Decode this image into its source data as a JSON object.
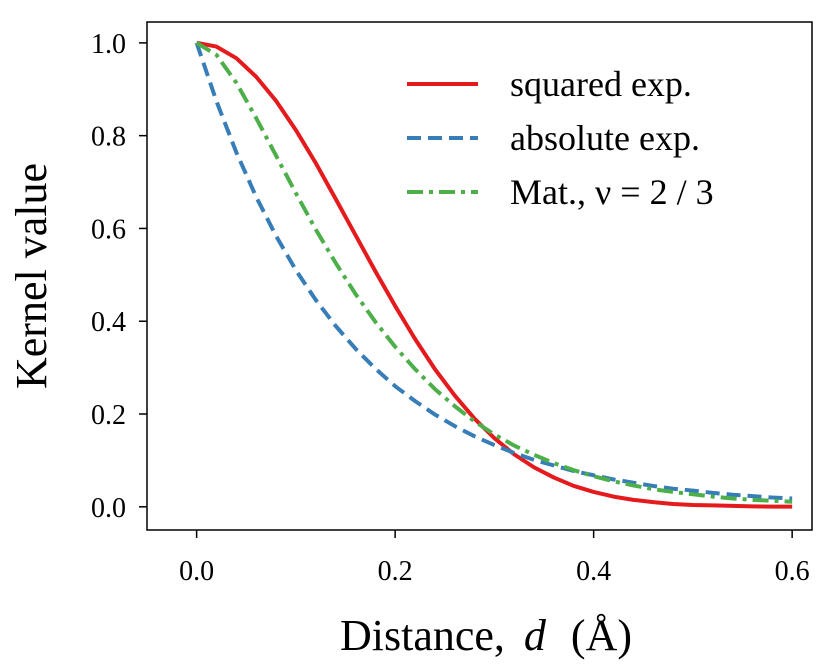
{
  "chart_data": {
    "type": "line",
    "title": "",
    "xlabel": "Distance,",
    "xlabel_var": "d",
    "xlabel_unit": "(Å)",
    "ylabel": "Kernel value",
    "xlim": [
      -0.05,
      0.62
    ],
    "ylim": [
      -0.05,
      1.045
    ],
    "xticks": [
      0.0,
      0.2,
      0.4,
      0.6
    ],
    "xtick_labels": [
      "0.0",
      "0.2",
      "0.4",
      "0.6"
    ],
    "yticks": [
      0.0,
      0.2,
      0.4,
      0.6,
      0.8,
      1.0
    ],
    "ytick_labels": [
      "0.0",
      "0.2",
      "0.4",
      "0.6",
      "0.8",
      "1.0"
    ],
    "grid": false,
    "legend_position": "top-right",
    "series": [
      {
        "name": "squared exp.",
        "color": "#e41a1c",
        "dash": "solid",
        "x": [
          0.0,
          0.02,
          0.04,
          0.06,
          0.08,
          0.1,
          0.12,
          0.14,
          0.16,
          0.18,
          0.2,
          0.22,
          0.24,
          0.26,
          0.28,
          0.3,
          0.32,
          0.34,
          0.36,
          0.38,
          0.4,
          0.42,
          0.44,
          0.46,
          0.48,
          0.5,
          0.52,
          0.54,
          0.56,
          0.58,
          0.6
        ],
        "y": [
          1.0,
          0.992,
          0.967,
          0.927,
          0.875,
          0.812,
          0.741,
          0.664,
          0.586,
          0.508,
          0.433,
          0.362,
          0.297,
          0.24,
          0.19,
          0.148,
          0.113,
          0.085,
          0.063,
          0.045,
          0.032,
          0.022,
          0.015,
          0.01,
          0.006,
          0.004,
          0.003,
          0.002,
          0.001,
          0.0005,
          0.0003
        ]
      },
      {
        "name": "absolute exp.",
        "color": "#377eb8",
        "dash": "dashed",
        "x": [
          0.0,
          0.02,
          0.04,
          0.06,
          0.08,
          0.1,
          0.12,
          0.14,
          0.16,
          0.18,
          0.2,
          0.22,
          0.24,
          0.26,
          0.28,
          0.3,
          0.32,
          0.34,
          0.36,
          0.38,
          0.4,
          0.42,
          0.44,
          0.46,
          0.48,
          0.5,
          0.52,
          0.54,
          0.56,
          0.58,
          0.6
        ],
        "y": [
          1.0,
          0.874,
          0.764,
          0.668,
          0.584,
          0.51,
          0.446,
          0.39,
          0.341,
          0.298,
          0.26,
          0.228,
          0.199,
          0.174,
          0.152,
          0.133,
          0.116,
          0.101,
          0.089,
          0.077,
          0.068,
          0.059,
          0.052,
          0.045,
          0.039,
          0.035,
          0.03,
          0.026,
          0.023,
          0.02,
          0.018
        ]
      },
      {
        "name": "Mat., ν = 2 / 3",
        "color": "#4daf4a",
        "dash": "dashdot",
        "x": [
          0.0,
          0.02,
          0.04,
          0.06,
          0.08,
          0.1,
          0.12,
          0.14,
          0.16,
          0.18,
          0.2,
          0.22,
          0.24,
          0.26,
          0.28,
          0.3,
          0.32,
          0.34,
          0.36,
          0.38,
          0.4,
          0.42,
          0.44,
          0.46,
          0.48,
          0.5,
          0.52,
          0.54,
          0.56,
          0.58,
          0.6
        ],
        "y": [
          1.0,
          0.974,
          0.914,
          0.838,
          0.757,
          0.676,
          0.598,
          0.526,
          0.459,
          0.399,
          0.345,
          0.297,
          0.254,
          0.217,
          0.184,
          0.156,
          0.132,
          0.112,
          0.094,
          0.079,
          0.066,
          0.055,
          0.046,
          0.038,
          0.032,
          0.027,
          0.022,
          0.018,
          0.015,
          0.013,
          0.011
        ]
      }
    ]
  }
}
